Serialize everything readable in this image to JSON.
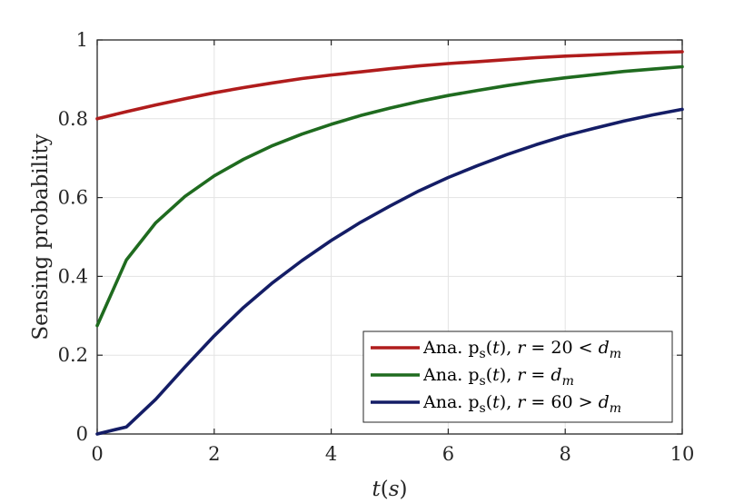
{
  "chart_data": {
    "type": "line",
    "title": "",
    "xlabel": "t(s)",
    "ylabel": "Sensing probability",
    "xlim": [
      0,
      10
    ],
    "ylim": [
      0,
      1
    ],
    "xticks": [
      0,
      2,
      4,
      6,
      8,
      10
    ],
    "yticks": [
      0,
      0.2,
      0.4,
      0.6,
      0.8,
      1
    ],
    "ytick_labels": [
      "0",
      "0.2",
      "0.4",
      "0.6",
      "0.8",
      "1"
    ],
    "grid": true,
    "legend_position": "bottom-right",
    "x": [
      0,
      0.5,
      1,
      1.5,
      2,
      2.5,
      3,
      3.5,
      4,
      4.5,
      5,
      5.5,
      6,
      6.5,
      7,
      7.5,
      8,
      8.5,
      9,
      9.5,
      10
    ],
    "series": [
      {
        "name": "Ana.  p_s(t), r = 20 < d_m",
        "color": "#b01c1c",
        "values": [
          0.8,
          0.818,
          0.835,
          0.851,
          0.866,
          0.879,
          0.891,
          0.902,
          0.911,
          0.919,
          0.927,
          0.934,
          0.94,
          0.945,
          0.95,
          0.955,
          0.959,
          0.962,
          0.965,
          0.968,
          0.97
        ]
      },
      {
        "name": "Ana.  p_s(t), r = d_m",
        "color": "#1f6b1f",
        "values": [
          0.275,
          0.442,
          0.536,
          0.603,
          0.655,
          0.697,
          0.732,
          0.761,
          0.786,
          0.808,
          0.827,
          0.844,
          0.859,
          0.872,
          0.884,
          0.895,
          0.904,
          0.912,
          0.92,
          0.926,
          0.932
        ]
      },
      {
        "name": "Ana.  p_s(t), r = 60 > d_m",
        "color": "#141d66",
        "values": [
          0.0,
          0.018,
          0.088,
          0.17,
          0.249,
          0.321,
          0.384,
          0.44,
          0.491,
          0.537,
          0.578,
          0.617,
          0.651,
          0.681,
          0.709,
          0.734,
          0.757,
          0.776,
          0.794,
          0.81,
          0.824
        ]
      }
    ]
  }
}
